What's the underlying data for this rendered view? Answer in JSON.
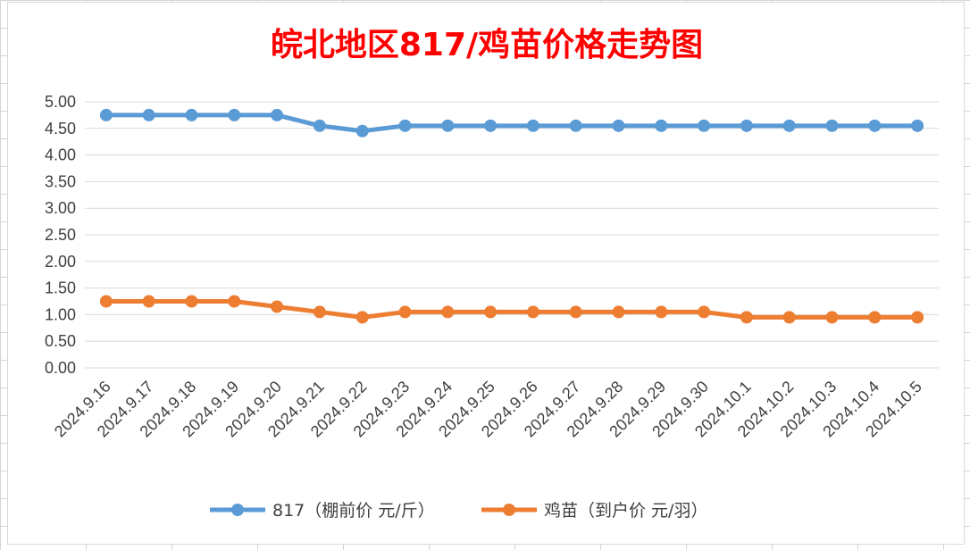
{
  "chart_data": {
    "type": "line",
    "title": "皖北地区817/鸡苗价格走势图",
    "xlabel": "",
    "ylabel": "",
    "categories": [
      "2024.9.16",
      "2024.9.17",
      "2024.9.18",
      "2024.9.19",
      "2024.9.20",
      "2024.9.21",
      "2024.9.22",
      "2024.9.23",
      "2024.9.24",
      "2024.9.25",
      "2024.9.26",
      "2024.9.27",
      "2024.9.28",
      "2024.9.29",
      "2024.9.30",
      "2024.10.1",
      "2024.10.2",
      "2024.10.3",
      "2024.10.4",
      "2024.10.5"
    ],
    "y_ticks": [
      "0.00",
      "0.50",
      "1.00",
      "1.50",
      "2.00",
      "2.50",
      "3.00",
      "3.50",
      "4.00",
      "4.50",
      "5.00"
    ],
    "ylim": [
      0,
      5
    ],
    "grid": true,
    "legend_position": "bottom",
    "series": [
      {
        "name": "817（棚前价 元/斤）",
        "color": "#5b9bd5",
        "values": [
          4.75,
          4.75,
          4.75,
          4.75,
          4.75,
          4.55,
          4.45,
          4.55,
          4.55,
          4.55,
          4.55,
          4.55,
          4.55,
          4.55,
          4.55,
          4.55,
          4.55,
          4.55,
          4.55,
          4.55
        ]
      },
      {
        "name": "鸡苗（到户价 元/羽）",
        "color": "#ed7d31",
        "values": [
          1.25,
          1.25,
          1.25,
          1.25,
          1.15,
          1.05,
          0.95,
          1.05,
          1.05,
          1.05,
          1.05,
          1.05,
          1.05,
          1.05,
          1.05,
          0.95,
          0.95,
          0.95,
          0.95,
          0.95
        ]
      }
    ]
  }
}
